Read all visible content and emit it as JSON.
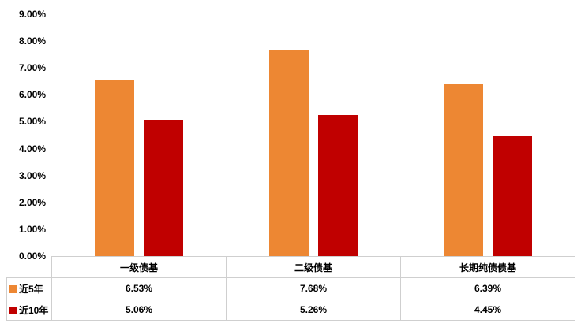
{
  "chart_data": {
    "type": "bar",
    "categories": [
      "一级债基",
      "二级债基",
      "长期纯债债基"
    ],
    "series": [
      {
        "name": "近5年",
        "color": "#ED8733",
        "values": [
          6.53,
          7.68,
          6.39
        ]
      },
      {
        "name": "近10年",
        "color": "#C00000",
        "values": [
          5.06,
          5.26,
          4.45
        ]
      }
    ],
    "title": "",
    "xlabel": "",
    "ylabel": "",
    "ylim": [
      0,
      9
    ],
    "ytick_step": 1,
    "ytick_labels": [
      "0.00%",
      "1.00%",
      "2.00%",
      "3.00%",
      "4.00%",
      "5.00%",
      "6.00%",
      "7.00%",
      "8.00%",
      "9.00%"
    ],
    "grid": false,
    "legend_position": "table-left"
  },
  "table": {
    "rows": [
      {
        "legend": "近5年",
        "color": "#ED8733",
        "cells": [
          "6.53%",
          "7.68%",
          "6.39%"
        ]
      },
      {
        "legend": "近10年",
        "color": "#C00000",
        "cells": [
          "5.06%",
          "5.26%",
          "4.45%"
        ]
      }
    ]
  }
}
